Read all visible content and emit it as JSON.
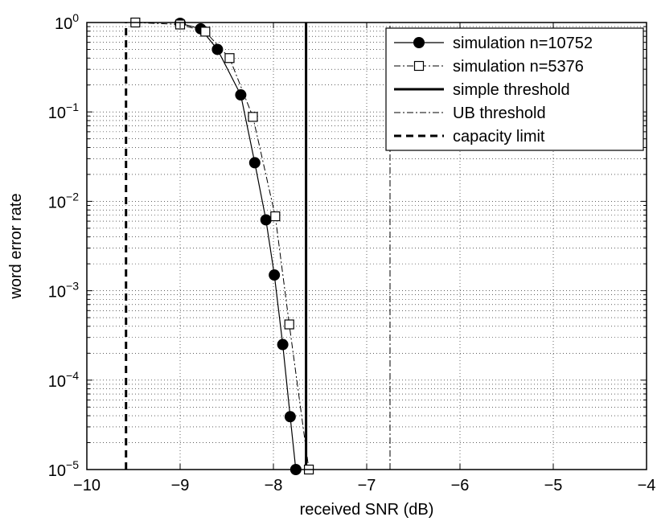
{
  "chart_data": {
    "type": "line",
    "title": "",
    "xlabel": "received SNR (dB)",
    "ylabel": "word error rate",
    "xlim": [
      -10,
      -4
    ],
    "ylim": [
      1e-05,
      1
    ],
    "yscale": "log",
    "grid": true,
    "legend_position": "top-right",
    "x_ticks": [
      -10,
      -9,
      -8,
      -7,
      -6,
      -5,
      -4
    ],
    "x_tick_labels": [
      "−10",
      "−9",
      "−8",
      "−7",
      "−6",
      "−5",
      "−4"
    ],
    "y_ticks": [
      {
        "value": 1,
        "base": "10",
        "exp": "0"
      },
      {
        "value": 0.1,
        "base": "10",
        "exp": "−1"
      },
      {
        "value": 0.01,
        "base": "10",
        "exp": "−2"
      },
      {
        "value": 0.001,
        "base": "10",
        "exp": "−3"
      },
      {
        "value": 0.0001,
        "base": "10",
        "exp": "−4"
      },
      {
        "value": 1e-05,
        "base": "10",
        "exp": "−5"
      }
    ],
    "series": [
      {
        "name": "simulation n=10752",
        "line": "solid",
        "marker": "filled-circle",
        "x": [
          -9.0,
          -8.78,
          -8.6,
          -8.35,
          -8.2,
          -8.08,
          -7.99,
          -7.9,
          -7.82,
          -7.76
        ],
        "y": [
          0.98,
          0.85,
          0.5,
          0.155,
          0.027,
          0.0062,
          0.0015,
          0.00025,
          3.9e-05,
          1e-05
        ]
      },
      {
        "name": "simulation n=5376",
        "line": "dashdot",
        "marker": "open-square",
        "x": [
          -9.48,
          -9.0,
          -8.73,
          -8.47,
          -8.22,
          -7.98,
          -7.83,
          -7.62
        ],
        "y": [
          1.0,
          0.95,
          0.79,
          0.4,
          0.088,
          0.0068,
          0.00042,
          1e-05
        ]
      },
      {
        "name": "simple threshold",
        "line": "solid-thick",
        "x": [
          -7.65,
          -7.65
        ],
        "y": [
          1e-05,
          1
        ]
      },
      {
        "name": "UB threshold",
        "line": "dashdot",
        "x": [
          -6.75,
          -6.75
        ],
        "y": [
          1e-05,
          1
        ]
      },
      {
        "name": "capacity limit",
        "line": "dashed-thick",
        "x": [
          -9.58,
          -9.58
        ],
        "y": [
          1e-05,
          1
        ]
      }
    ]
  }
}
